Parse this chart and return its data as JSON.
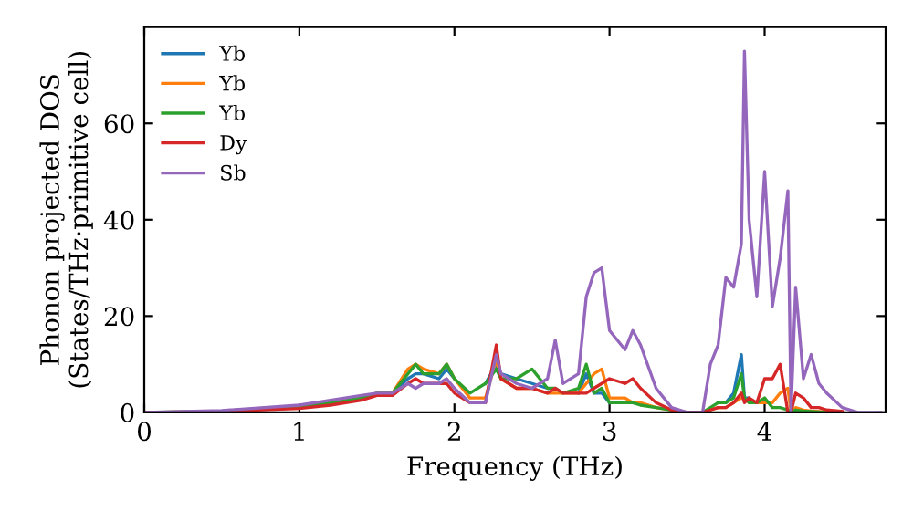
{
  "chart_data": {
    "type": "line",
    "xlabel": "Frequency (THz)",
    "ylabel": "Phonon projected DOS\n(States/THz·primitive cell)",
    "x": [
      0,
      0.5,
      1.0,
      1.2,
      1.4,
      1.5,
      1.6,
      1.7,
      1.75,
      1.8,
      1.9,
      1.95,
      2.0,
      2.1,
      2.2,
      2.27,
      2.3,
      2.4,
      2.5,
      2.6,
      2.65,
      2.7,
      2.8,
      2.85,
      2.9,
      2.95,
      3.0,
      3.1,
      3.15,
      3.2,
      3.3,
      3.4,
      3.5,
      3.6,
      3.65,
      3.7,
      3.75,
      3.8,
      3.85,
      3.87,
      3.9,
      3.95,
      4.0,
      4.05,
      4.1,
      4.15,
      4.17,
      4.2,
      4.25,
      4.3,
      4.35,
      4.4,
      4.5,
      4.6,
      4.75
    ],
    "series": [
      {
        "name": "Yb",
        "color": "#1f77b4",
        "values": [
          null,
          null,
          null,
          null,
          null,
          null,
          4,
          7,
          8,
          8,
          7,
          9,
          7,
          null,
          6,
          10,
          8,
          7,
          6,
          5,
          null,
          null,
          4,
          8,
          4,
          4,
          2,
          null,
          null,
          null,
          null,
          null,
          null,
          null,
          null,
          2,
          2,
          4,
          12,
          3,
          3,
          null,
          null,
          null,
          null,
          null,
          null,
          null,
          null,
          null,
          null,
          null,
          null,
          null,
          null
        ]
      },
      {
        "name": "Yb",
        "color": "#ff7f0e",
        "values": [
          null,
          null,
          null,
          null,
          null,
          4,
          4,
          9,
          10,
          9,
          8,
          10,
          7,
          3,
          3,
          11,
          7,
          5,
          5,
          4,
          4,
          4,
          4,
          6,
          8,
          9,
          3,
          3,
          2,
          2,
          1,
          0.5,
          0,
          0,
          0.5,
          1,
          1,
          2,
          3,
          3,
          2,
          2,
          2,
          2,
          4,
          5,
          0,
          1,
          0.5,
          0.3,
          0.2,
          0.1,
          null,
          null,
          null
        ]
      },
      {
        "name": "Yb",
        "color": "#2ca02c",
        "values": [
          0,
          0.3,
          1.2,
          2,
          3,
          4,
          4,
          8,
          10,
          8,
          8,
          10,
          7,
          4,
          6,
          9,
          7,
          7,
          9,
          5,
          5,
          4,
          5,
          10,
          4,
          5,
          2,
          2,
          2,
          1.5,
          1,
          0.5,
          0,
          0,
          1,
          2,
          2,
          3,
          8,
          3,
          2,
          2,
          3,
          1,
          1,
          0.5,
          0,
          0.5,
          0.3,
          0.2,
          0.1,
          0,
          0,
          null,
          null
        ]
      },
      {
        "name": "Dy",
        "color": "#d62728",
        "values": [
          0,
          0.2,
          0.8,
          1.5,
          2.5,
          3.5,
          3.5,
          6,
          7,
          6,
          6,
          6,
          4,
          2,
          2,
          14,
          7,
          5,
          5,
          4,
          5,
          4,
          4,
          4,
          5,
          6,
          7,
          6,
          7,
          5,
          2,
          0.5,
          0,
          0,
          0.5,
          1,
          1,
          2,
          4,
          2,
          3,
          2,
          7,
          7,
          10,
          0,
          0,
          4,
          3,
          1,
          1,
          0.5,
          0.2,
          null,
          null
        ]
      },
      {
        "name": "Sb",
        "color": "#9467bd",
        "values": [
          0,
          0.4,
          1.5,
          2.5,
          3.5,
          4,
          4,
          6,
          5,
          6,
          6,
          7,
          5,
          2,
          2,
          12,
          8,
          6,
          5,
          7,
          15,
          6,
          8,
          24,
          29,
          30,
          17,
          13,
          17,
          14,
          5,
          1,
          0,
          0,
          10,
          14,
          28,
          26,
          35,
          75,
          40,
          24,
          50,
          22,
          32,
          46,
          0,
          26,
          7,
          12,
          6,
          4,
          1,
          0,
          0
        ]
      }
    ],
    "xlim": [
      0,
      4.78
    ],
    "ylim": [
      0,
      80
    ],
    "xticks": [
      0,
      1,
      2,
      3,
      4
    ],
    "yticks": [
      0,
      20,
      40,
      60
    ],
    "legend": "top left",
    "grid": false
  }
}
